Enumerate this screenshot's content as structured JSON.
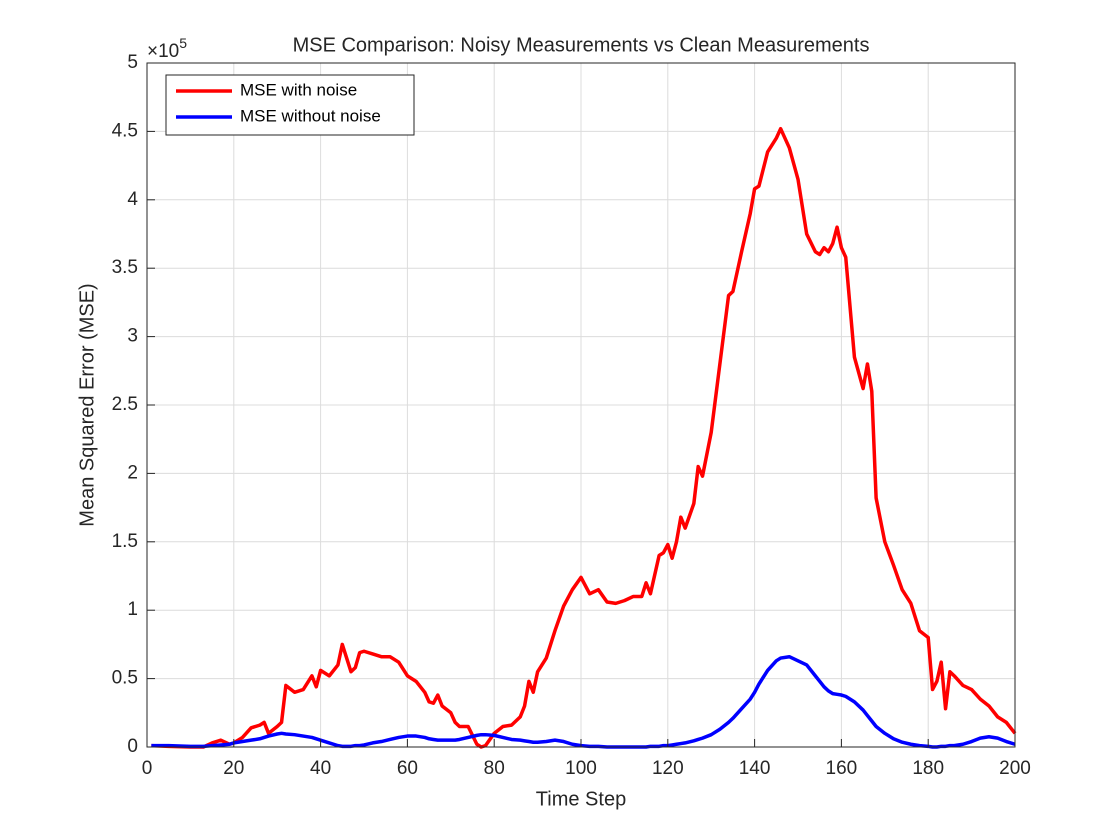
{
  "chart_data": {
    "type": "line",
    "title": "MSE Comparison: Noisy Measurements vs Clean Measurements",
    "xlabel": "Time Step",
    "ylabel": "Mean Squared Error (MSE)",
    "y_scale_base": "×10",
    "y_scale_exponent": "5",
    "xlim": [
      0,
      200
    ],
    "xticks": [
      0,
      20,
      40,
      60,
      80,
      100,
      120,
      140,
      160,
      180,
      200
    ],
    "ylim": [
      0,
      5
    ],
    "yticks": [
      0,
      0.5,
      1,
      1.5,
      2,
      2.5,
      3,
      3.5,
      4,
      4.5,
      5
    ],
    "grid": true,
    "legend": "northwest",
    "x": [
      1,
      5,
      10,
      13,
      15,
      17,
      19,
      20,
      22,
      24,
      26,
      27,
      28,
      30,
      31,
      32,
      34,
      36,
      38,
      39,
      40,
      42,
      44,
      45,
      46,
      47,
      48,
      49,
      50,
      52,
      54,
      56,
      58,
      60,
      62,
      64,
      65,
      66,
      67,
      68,
      70,
      71,
      72,
      74,
      76,
      77,
      78,
      80,
      82,
      84,
      86,
      87,
      88,
      89,
      90,
      92,
      94,
      96,
      98,
      100,
      102,
      104,
      106,
      108,
      110,
      112,
      114,
      115,
      116,
      118,
      119,
      120,
      121,
      122,
      123,
      124,
      126,
      127,
      128,
      130,
      132,
      134,
      135,
      137,
      139,
      140,
      141,
      143,
      145,
      146,
      148,
      150,
      152,
      154,
      155,
      156,
      157,
      158,
      159,
      160,
      161,
      163,
      165,
      166,
      167,
      168,
      170,
      172,
      174,
      176,
      178,
      180,
      181,
      182,
      183,
      184,
      185,
      186,
      188,
      190,
      192,
      194,
      196,
      198,
      200
    ],
    "series": [
      {
        "name": "MSE with noise",
        "color": "#ff0000",
        "values": [
          0.01,
          0.005,
          0,
          0,
          0.03,
          0.05,
          0.02,
          0.03,
          0.07,
          0.14,
          0.16,
          0.18,
          0.1,
          0.15,
          0.18,
          0.45,
          0.4,
          0.42,
          0.52,
          0.44,
          0.56,
          0.52,
          0.6,
          0.75,
          0.65,
          0.55,
          0.58,
          0.69,
          0.7,
          0.68,
          0.66,
          0.66,
          0.62,
          0.52,
          0.48,
          0.4,
          0.33,
          0.32,
          0.38,
          0.3,
          0.25,
          0.18,
          0.15,
          0.15,
          0.02,
          0,
          0.01,
          0.1,
          0.15,
          0.16,
          0.22,
          0.3,
          0.48,
          0.4,
          0.55,
          0.65,
          0.85,
          1.03,
          1.15,
          1.24,
          1.12,
          1.15,
          1.06,
          1.05,
          1.07,
          1.1,
          1.1,
          1.2,
          1.12,
          1.4,
          1.42,
          1.48,
          1.38,
          1.5,
          1.68,
          1.6,
          1.78,
          2.05,
          1.98,
          2.3,
          2.8,
          3.3,
          3.33,
          3.62,
          3.9,
          4.08,
          4.1,
          4.35,
          4.45,
          4.52,
          4.38,
          4.15,
          3.75,
          3.62,
          3.6,
          3.65,
          3.62,
          3.68,
          3.8,
          3.65,
          3.58,
          2.85,
          2.62,
          2.8,
          2.6,
          1.82,
          1.5,
          1.33,
          1.15,
          1.05,
          0.85,
          0.8,
          0.42,
          0.48,
          0.62,
          0.28,
          0.55,
          0.52,
          0.45,
          0.42,
          0.35,
          0.3,
          0.22,
          0.18,
          0.1
        ]
      },
      {
        "name": "MSE without noise",
        "color": "#0000ff",
        "values": [
          0.01,
          0.01,
          0.005,
          0.005,
          0.01,
          0.015,
          0.02,
          0.03,
          0.04,
          0.05,
          0.06,
          0.07,
          0.08,
          0.095,
          0.1,
          0.095,
          0.09,
          0.08,
          0.07,
          0.06,
          0.05,
          0.03,
          0.01,
          0.005,
          0.005,
          0.005,
          0.01,
          0.01,
          0.015,
          0.03,
          0.04,
          0.055,
          0.07,
          0.08,
          0.08,
          0.07,
          0.06,
          0.055,
          0.05,
          0.05,
          0.05,
          0.05,
          0.055,
          0.07,
          0.085,
          0.09,
          0.09,
          0.085,
          0.07,
          0.055,
          0.05,
          0.045,
          0.04,
          0.035,
          0.035,
          0.04,
          0.05,
          0.04,
          0.02,
          0.01,
          0.005,
          0.005,
          0,
          0,
          0,
          0,
          0,
          0,
          0.005,
          0.005,
          0.01,
          0.01,
          0.015,
          0.02,
          0.025,
          0.03,
          0.045,
          0.055,
          0.065,
          0.09,
          0.13,
          0.18,
          0.21,
          0.28,
          0.35,
          0.4,
          0.46,
          0.56,
          0.63,
          0.65,
          0.66,
          0.63,
          0.6,
          0.52,
          0.48,
          0.44,
          0.41,
          0.39,
          0.385,
          0.38,
          0.37,
          0.33,
          0.27,
          0.23,
          0.19,
          0.15,
          0.1,
          0.06,
          0.035,
          0.02,
          0.01,
          0.005,
          0,
          0,
          0.005,
          0.005,
          0.01,
          0.01,
          0.02,
          0.04,
          0.065,
          0.075,
          0.065,
          0.04,
          0.02
        ]
      }
    ]
  }
}
